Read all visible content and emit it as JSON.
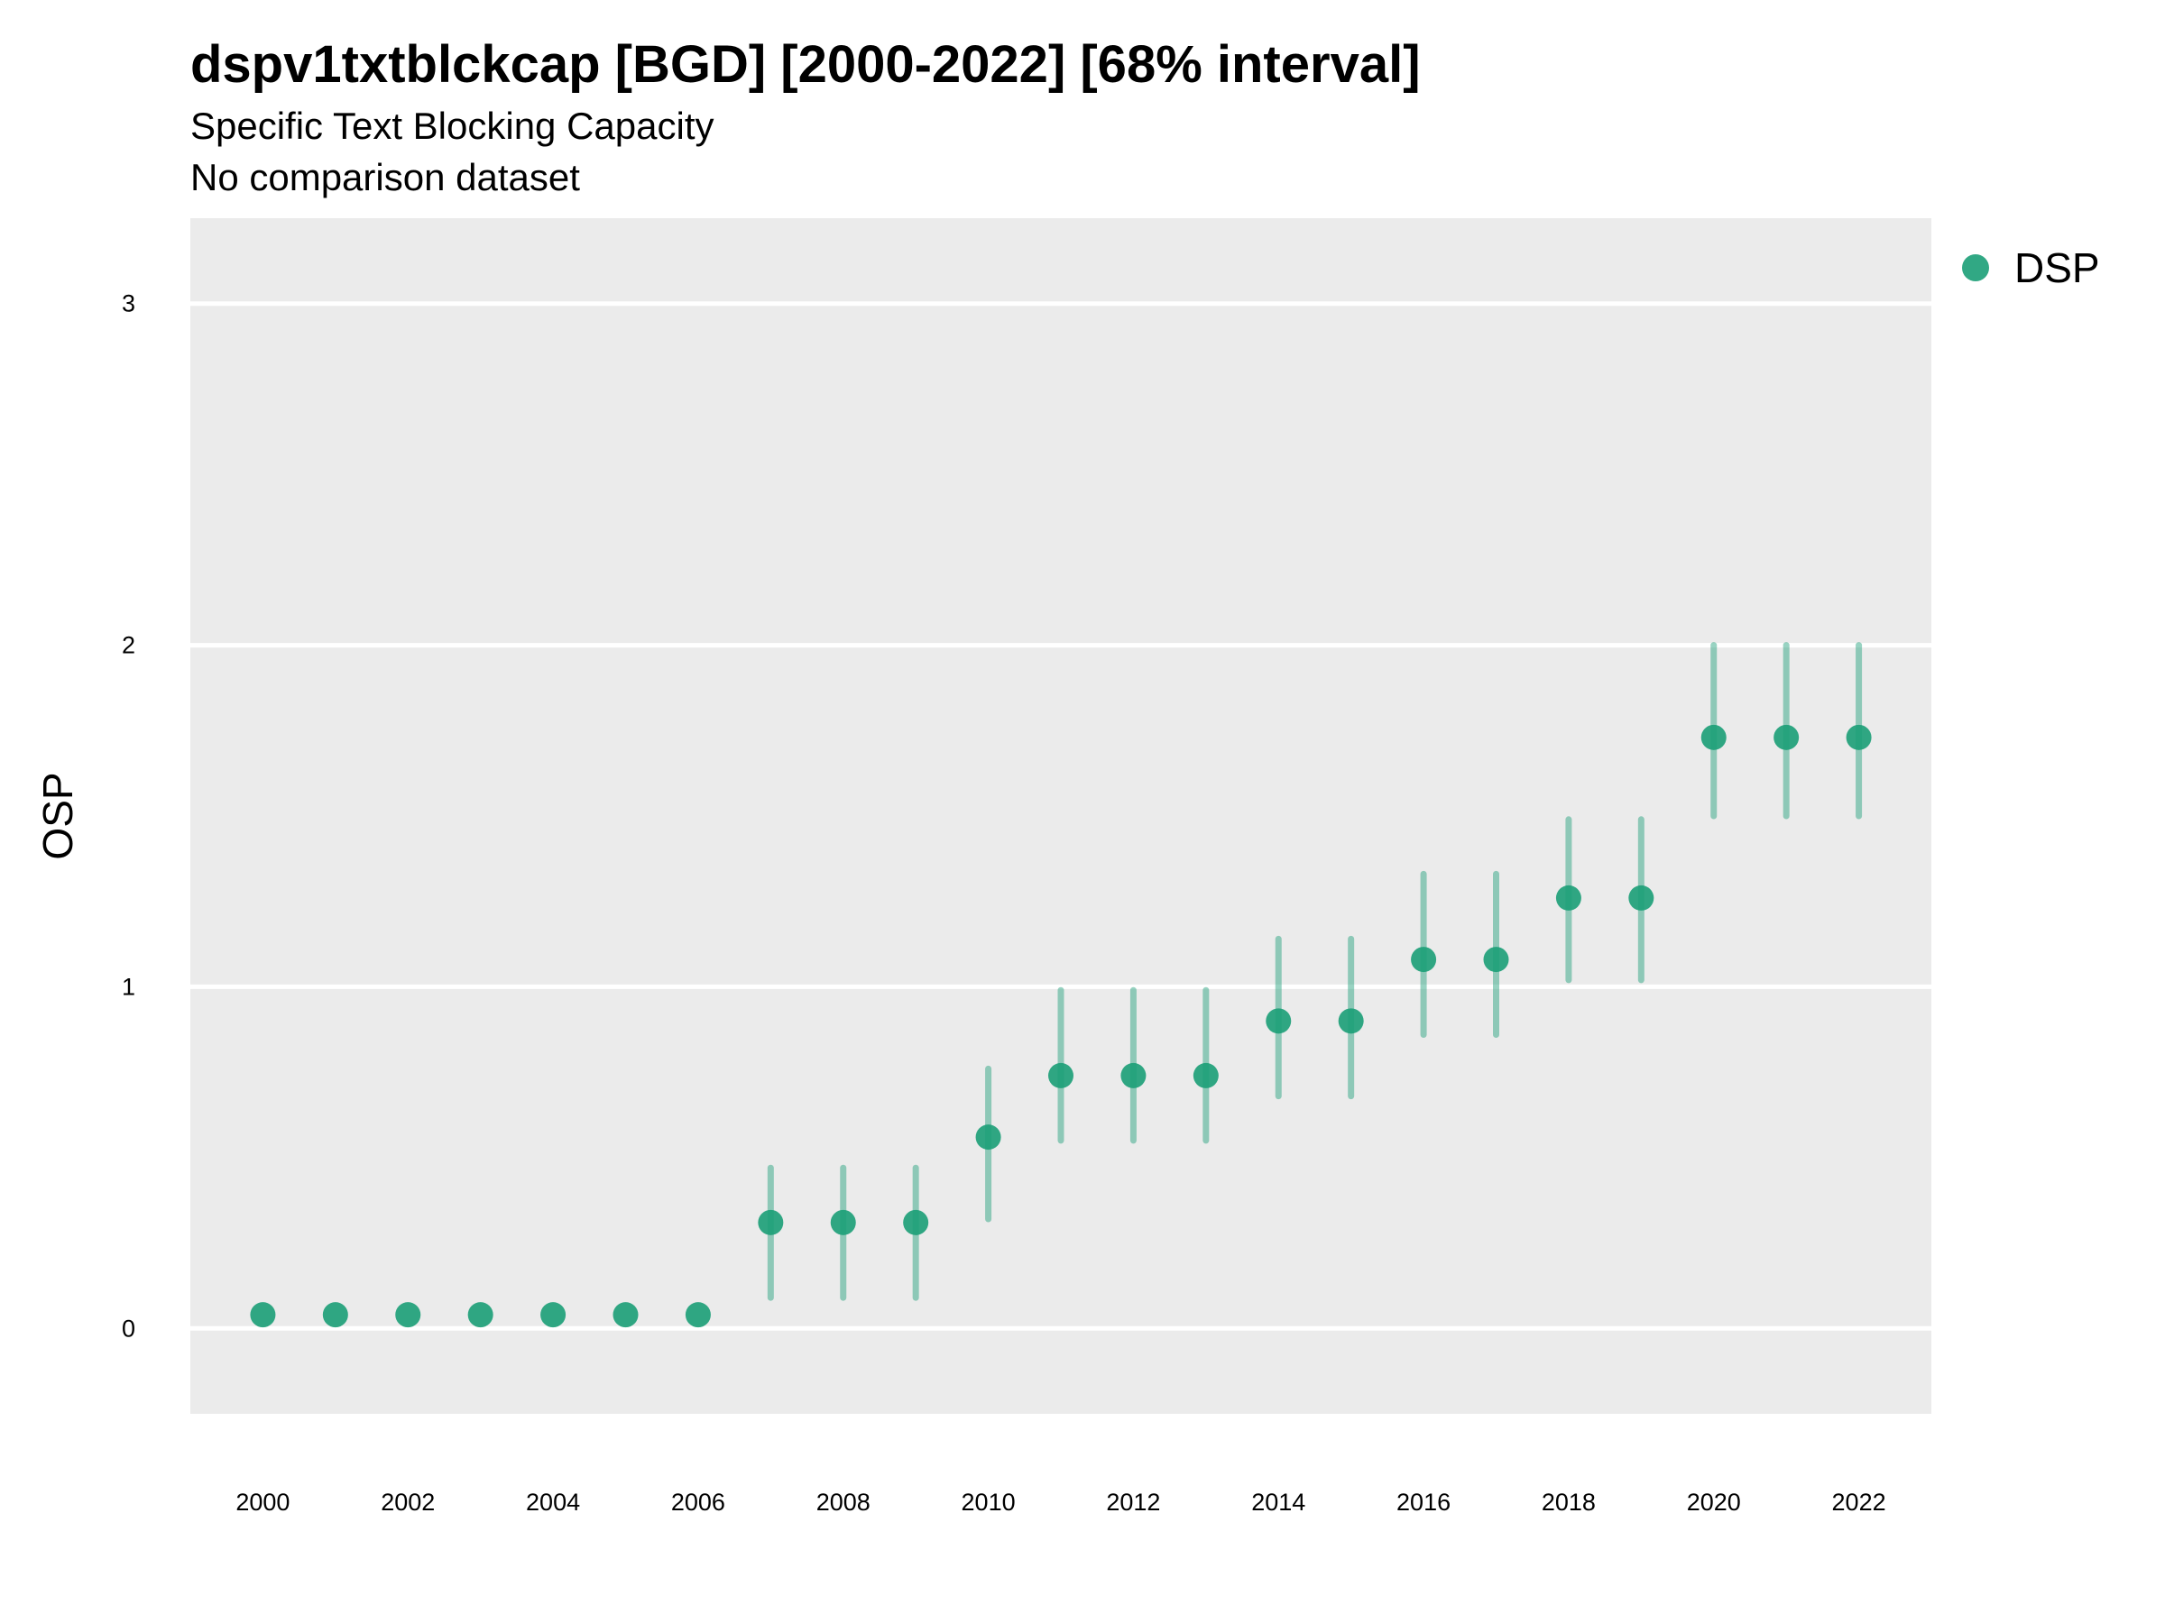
{
  "title": "dspv1txtblckcap [BGD] [2000-2022] [68% interval]",
  "subtitle": "Specific Text Blocking Capacity",
  "note": "No comparison dataset",
  "colors": {
    "panel": "#ebebeb",
    "grid": "#ffffff",
    "series": "#1b9e77"
  },
  "chart_data": {
    "type": "scatter",
    "title": "dspv1txtblckcap [BGD] [2000-2022] [68% interval]",
    "xlabel": "",
    "ylabel": "OSP",
    "xlim": [
      1999.0,
      2023.0
    ],
    "ylim": [
      -0.25,
      3.25
    ],
    "xticks": [
      2000,
      2002,
      2004,
      2006,
      2008,
      2010,
      2012,
      2014,
      2016,
      2018,
      2020,
      2022
    ],
    "yticks": [
      0,
      1,
      2,
      3
    ],
    "grid": true,
    "legend": "right",
    "series": [
      {
        "name": "DSP",
        "x": [
          2000,
          2001,
          2002,
          2003,
          2004,
          2005,
          2006,
          2007,
          2008,
          2009,
          2010,
          2011,
          2012,
          2013,
          2014,
          2015,
          2016,
          2017,
          2018,
          2019,
          2020,
          2021,
          2022
        ],
        "y": [
          0.04,
          0.04,
          0.04,
          0.04,
          0.04,
          0.04,
          0.04,
          0.31,
          0.31,
          0.31,
          0.56,
          0.74,
          0.74,
          0.74,
          0.9,
          0.9,
          1.08,
          1.08,
          1.26,
          1.26,
          1.73,
          1.73,
          1.73
        ],
        "lower": [
          null,
          null,
          null,
          null,
          null,
          null,
          null,
          0.09,
          0.09,
          0.09,
          0.32,
          0.55,
          0.55,
          0.55,
          0.68,
          0.68,
          0.86,
          0.86,
          1.02,
          1.02,
          1.5,
          1.5,
          1.5
        ],
        "upper": [
          null,
          null,
          null,
          null,
          null,
          null,
          null,
          0.47,
          0.47,
          0.47,
          0.76,
          0.99,
          0.99,
          0.99,
          1.14,
          1.14,
          1.33,
          1.33,
          1.49,
          1.49,
          2.0,
          2.0,
          2.0
        ]
      }
    ]
  }
}
